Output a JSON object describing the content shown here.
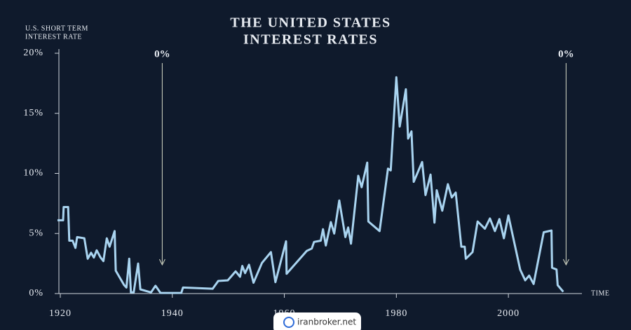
{
  "chart_data": {
    "type": "line",
    "title": [
      "THE UNITED STATES",
      "INTEREST RATES"
    ],
    "y_label": [
      "U.S. SHORT TERM",
      "INTEREST RATE"
    ],
    "x_label": "TIME",
    "annotations": [
      {
        "text": "0%",
        "x": 1938.2
      },
      {
        "text": "0%",
        "x": 2010.3
      }
    ],
    "watermark": "iranbroker.net",
    "xlim": [
      1919.5,
      2011
    ],
    "xticks": [
      1920,
      1940,
      1960,
      1980,
      2000
    ],
    "ylim": [
      0,
      20
    ],
    "yticks": [
      {
        "value": 0,
        "label": "0%"
      },
      {
        "value": 5,
        "label": "5%"
      },
      {
        "value": 10,
        "label": "10%"
      },
      {
        "value": 15,
        "label": "15%"
      },
      {
        "value": 20,
        "label": "20%"
      }
    ],
    "series": [
      {
        "name": "U.S. short term interest rate",
        "color": "#a9d4f0",
        "x": [
          1919.5,
          1920.5,
          1920.6,
          1921.4,
          1921.6,
          1922.2,
          1922.7,
          1923,
          1924.3,
          1924.9,
          1925.5,
          1926,
          1926.5,
          1927.2,
          1927.7,
          1928.3,
          1928.8,
          1929.7,
          1929.9,
          1931.4,
          1931.8,
          1932.3,
          1932.6,
          1933.1,
          1933.9,
          1934.3,
          1936.2,
          1937,
          1937.9,
          1941.6,
          1941.9,
          1947.2,
          1948.2,
          1949.9,
          1951.3,
          1952.1,
          1952.5,
          1953,
          1953.7,
          1954.5,
          1956,
          1957.6,
          1958.4,
          1960.3,
          1960.4,
          1964,
          1964.9,
          1965.3,
          1966.5,
          1966.9,
          1967.4,
          1968.3,
          1968.9,
          1969.8,
          1970.9,
          1971.4,
          1971.9,
          1973.2,
          1973.8,
          1974.8,
          1975,
          1977,
          1978.5,
          1979,
          1980,
          1980.6,
          1981.7,
          1982.1,
          1982.7,
          1983.1,
          1984.6,
          1985.2,
          1986.1,
          1986.8,
          1987.2,
          1988.2,
          1989.2,
          1989.9,
          1990.6,
          1991.6,
          1992.2,
          1992.4,
          1993.6,
          1994.5,
          1995.8,
          1996.7,
          1997.6,
          1998.4,
          1999.2,
          2000,
          2002.1,
          2003,
          2003.7,
          2004.5,
          2006.3,
          2007.7,
          2007.8,
          2008.6,
          2008.8,
          2009.8
        ],
        "values": [
          6.1,
          6.1,
          7.2,
          7.2,
          4.4,
          4.4,
          3.8,
          4.7,
          4.6,
          2.9,
          3.4,
          3.0,
          3.6,
          3.0,
          2.7,
          4.6,
          3.9,
          5.2,
          1.9,
          0.7,
          0.5,
          2.9,
          0.1,
          0.1,
          2.5,
          0.35,
          0.1,
          0.65,
          0.05,
          0.05,
          0.5,
          0.4,
          1.05,
          1.1,
          1.85,
          1.4,
          2.3,
          1.7,
          2.4,
          0.9,
          2.55,
          3.45,
          0.95,
          4.35,
          1.65,
          3.55,
          3.75,
          4.3,
          4.4,
          5.35,
          4.0,
          5.95,
          5.0,
          7.75,
          4.7,
          5.5,
          4.15,
          9.8,
          8.85,
          10.9,
          6.0,
          5.2,
          10.4,
          10.25,
          18.0,
          13.9,
          17.0,
          12.9,
          13.5,
          9.3,
          10.95,
          8.2,
          9.9,
          5.9,
          8.6,
          6.9,
          9.1,
          8.0,
          8.4,
          3.9,
          3.9,
          2.9,
          3.45,
          6.0,
          5.4,
          6.25,
          5.2,
          6.2,
          4.6,
          6.5,
          2.0,
          1.1,
          1.5,
          0.8,
          5.1,
          5.25,
          2.15,
          2.0,
          0.7,
          0.15
        ]
      }
    ]
  }
}
